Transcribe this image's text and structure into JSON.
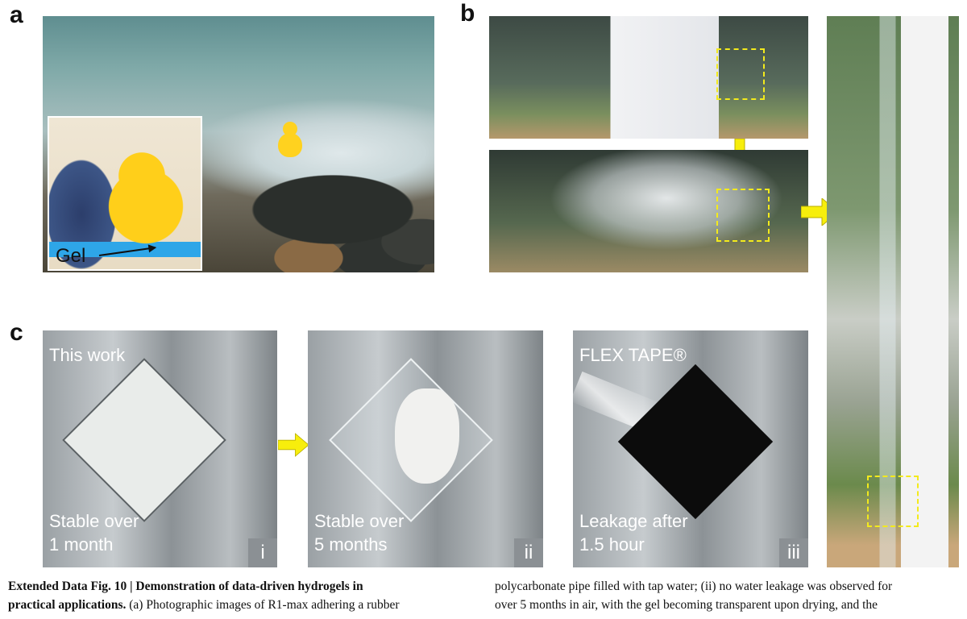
{
  "panels": {
    "a": {
      "letter": "a",
      "inset_label": "Gel"
    },
    "b": {
      "letter": "b"
    },
    "c": {
      "letter": "c",
      "subpanels": [
        {
          "top_text": "This work",
          "bottom_line1": "Stable over",
          "bottom_line2": "1 month",
          "roman": "i"
        },
        {
          "top_text": "",
          "bottom_line1": "Stable over",
          "bottom_line2": "5 months",
          "roman": "ii"
        },
        {
          "top_text": "FLEX TAPE®",
          "bottom_line1": "Leakage after",
          "bottom_line2": "1.5 hour",
          "roman": "iii"
        }
      ]
    }
  },
  "colors": {
    "arrow_yellow": "#f7ee0c",
    "dash_yellow": "#f3ea1c",
    "roman_badge": "#8b9094"
  },
  "caption": {
    "left_bold_line1": "Extended Data Fig. 10 | Demonstration of data-driven hydrogels in",
    "left_bold_line2": "practical applications.",
    "left_line2_rest": " (a) Photographic images of R1-max adhering a rubber",
    "right_line1": "polycarbonate pipe filled with tap water; (ii) no water leakage was observed for",
    "right_line2": "over 5 months in air, with the gel becoming transparent upon drying, and the"
  }
}
